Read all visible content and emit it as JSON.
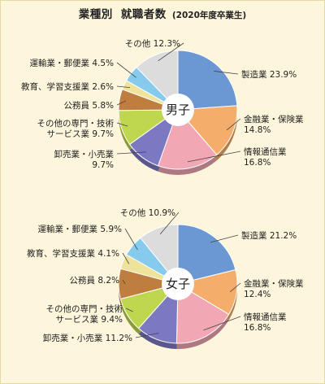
{
  "title": {
    "main": "業種別",
    "main2": "就職者数",
    "sub": "(2020年度卒業生)"
  },
  "colors": {
    "background": "#fdf6dc",
    "製造業": "#6b97d2",
    "金融業・保険業": "#f4ad6a",
    "情報通信業": "#f2a7b4",
    "卸売業・小売業": "#7b79c2",
    "その他の専門・技術サービス業": "#bfd64f",
    "公務員": "#bf7d3f",
    "教育、学習支援業": "#efe29a",
    "運輸業・郵便業": "#86cbed",
    "その他": "#dcdcdc"
  },
  "chart_data": [
    {
      "type": "pie",
      "center_label": "男子",
      "slices": [
        {
          "category": "製造業",
          "value": 23.9,
          "label_lines": [
            "製造業 23.9%"
          ]
        },
        {
          "category": "金融業・保険業",
          "value": 14.8,
          "label_lines": [
            "金融業・保険業",
            "14.8%"
          ]
        },
        {
          "category": "情報通信業",
          "value": 16.8,
          "label_lines": [
            "情報通信業",
            "16.8%"
          ]
        },
        {
          "category": "卸売業・小売業",
          "value": 9.7,
          "label_lines": [
            "卸売業・小売業",
            "9.7%"
          ]
        },
        {
          "category": "その他の専門・技術サービス業",
          "value": 9.7,
          "label_lines": [
            "その他の専門・技術",
            "サービス業 9.7%"
          ]
        },
        {
          "category": "公務員",
          "value": 5.8,
          "label_lines": [
            "公務員 5.8%"
          ]
        },
        {
          "category": "教育、学習支援業",
          "value": 2.6,
          "label_lines": [
            "教育、学習支援業 2.6%"
          ]
        },
        {
          "category": "運輸業・郵便業",
          "value": 4.5,
          "label_lines": [
            "運輸業・郵便業 4.5%"
          ]
        },
        {
          "category": "その他",
          "value": 12.3,
          "label_lines": [
            "その他 12.3%"
          ]
        }
      ]
    },
    {
      "type": "pie",
      "center_label": "女子",
      "slices": [
        {
          "category": "製造業",
          "value": 21.2,
          "label_lines": [
            "製造業 21.2%"
          ]
        },
        {
          "category": "金融業・保険業",
          "value": 12.4,
          "label_lines": [
            "金融業・保険業",
            "12.4%"
          ]
        },
        {
          "category": "情報通信業",
          "value": 16.8,
          "label_lines": [
            "情報通信業",
            "16.8%"
          ]
        },
        {
          "category": "卸売業・小売業",
          "value": 11.2,
          "label_lines": [
            "卸売業・小売業 11.2%"
          ]
        },
        {
          "category": "その他の専門・技術サービス業",
          "value": 9.4,
          "label_lines": [
            "その他の専門・技術",
            "サービス業 9.4%"
          ]
        },
        {
          "category": "公務員",
          "value": 8.2,
          "label_lines": [
            "公務員 8.2%"
          ]
        },
        {
          "category": "教育、学習支援業",
          "value": 4.1,
          "label_lines": [
            "教育、学習支援業 4.1%"
          ]
        },
        {
          "category": "運輸業・郵便業",
          "value": 5.9,
          "label_lines": [
            "運輸業・郵便業 5.9%"
          ]
        },
        {
          "category": "その他",
          "value": 10.9,
          "label_lines": [
            "その他 10.9%"
          ]
        }
      ]
    }
  ]
}
